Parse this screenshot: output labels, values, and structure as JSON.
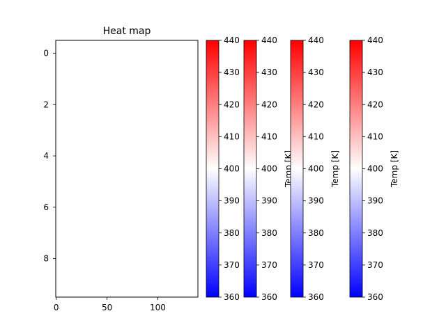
{
  "chart_data": {
    "type": "heatmap",
    "title": "Heat map",
    "x_ticks": [
      0,
      50,
      100
    ],
    "y_ticks": [
      0,
      2,
      4,
      6,
      8
    ],
    "xlim": [
      -0.5,
      139.5
    ],
    "ylim": [
      9.5,
      -0.5
    ],
    "rows": 10,
    "cols": 140,
    "value_range": [
      360,
      440
    ],
    "approx_uniform_value": 400,
    "colormap": "bwr",
    "colors": {
      "low": "#0000ff",
      "mid": "#ffffff",
      "high": "#ff0000"
    },
    "colorbars": [
      {
        "ticks": [
          360,
          370,
          380,
          390,
          400,
          410,
          420,
          430,
          440
        ],
        "label": ""
      },
      {
        "ticks": [
          360,
          370,
          380,
          390,
          400,
          410,
          420,
          430,
          440
        ],
        "label": "Temp [K]"
      },
      {
        "ticks": [
          360,
          370,
          380,
          390,
          400,
          410,
          420,
          430,
          440
        ],
        "label": "Temp [K]"
      },
      {
        "ticks": [
          360,
          370,
          380,
          390,
          400,
          410,
          420,
          430,
          440
        ],
        "label": "Temp [K]"
      }
    ],
    "grid": false
  }
}
